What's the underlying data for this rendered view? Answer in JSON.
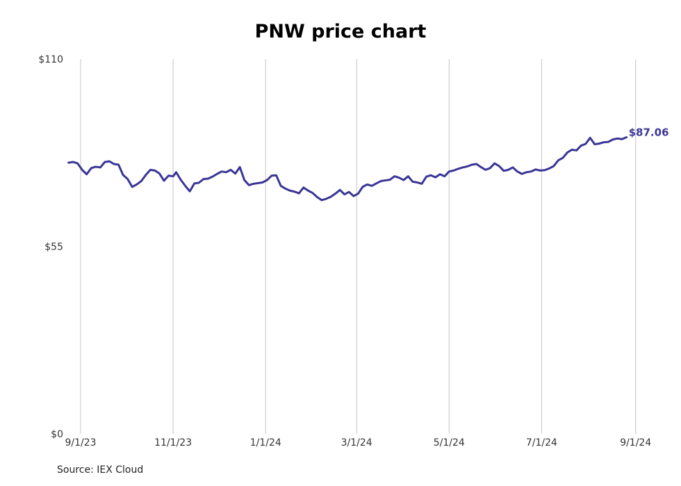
{
  "title": "PNW price chart",
  "source": "Source: IEX Cloud",
  "chart_data": {
    "type": "line",
    "title": "PNW price chart",
    "xlabel": "",
    "ylabel": "",
    "ylim": [
      0,
      110
    ],
    "xlim": [
      "2023-08-21",
      "2024-09-08"
    ],
    "y_ticks": [
      {
        "value": 0,
        "label": "$0"
      },
      {
        "value": 55,
        "label": "$55"
      },
      {
        "value": 110,
        "label": "$110"
      }
    ],
    "x_ticks": [
      {
        "date": "2023-09-01",
        "label": "9/1/23"
      },
      {
        "date": "2023-11-01",
        "label": "11/1/23"
      },
      {
        "date": "2024-01-01",
        "label": "1/1/24"
      },
      {
        "date": "2024-03-01",
        "label": "3/1/24"
      },
      {
        "date": "2024-05-01",
        "label": "5/1/24"
      },
      {
        "date": "2024-07-01",
        "label": "7/1/24"
      },
      {
        "date": "2024-09-01",
        "label": "9/1/24"
      }
    ],
    "grid": "vertical",
    "line_color": "#3a3596",
    "last_value_label": "$87.06",
    "series": [
      {
        "points": [
          [
            "2023-08-24",
            79.6
          ],
          [
            "2023-08-27",
            79.8
          ],
          [
            "2023-08-30",
            79.4
          ],
          [
            "2023-09-02",
            77.5
          ],
          [
            "2023-09-05",
            76.2
          ],
          [
            "2023-09-08",
            78.0
          ],
          [
            "2023-09-11",
            78.4
          ],
          [
            "2023-09-14",
            78.2
          ],
          [
            "2023-09-17",
            79.8
          ],
          [
            "2023-09-20",
            80.0
          ],
          [
            "2023-09-23",
            79.2
          ],
          [
            "2023-09-26",
            79.0
          ],
          [
            "2023-09-29",
            76.0
          ],
          [
            "2023-10-02",
            74.8
          ],
          [
            "2023-10-05",
            72.5
          ],
          [
            "2023-10-08",
            73.2
          ],
          [
            "2023-10-11",
            74.2
          ],
          [
            "2023-10-14",
            76.0
          ],
          [
            "2023-10-17",
            77.5
          ],
          [
            "2023-10-20",
            77.3
          ],
          [
            "2023-10-23",
            76.4
          ],
          [
            "2023-10-26",
            74.3
          ],
          [
            "2023-10-29",
            75.8
          ],
          [
            "2023-11-01",
            75.6
          ],
          [
            "2023-11-03",
            76.8
          ],
          [
            "2023-11-06",
            74.6
          ],
          [
            "2023-11-09",
            72.8
          ],
          [
            "2023-11-12",
            71.2
          ],
          [
            "2023-11-15",
            73.5
          ],
          [
            "2023-11-18",
            73.7
          ],
          [
            "2023-11-21",
            74.8
          ],
          [
            "2023-11-24",
            74.9
          ],
          [
            "2023-11-27",
            75.5
          ],
          [
            "2023-11-30",
            76.3
          ],
          [
            "2023-12-03",
            77.0
          ],
          [
            "2023-12-06",
            76.8
          ],
          [
            "2023-12-09",
            77.5
          ],
          [
            "2023-12-12",
            76.4
          ],
          [
            "2023-12-15",
            78.3
          ],
          [
            "2023-12-18",
            74.5
          ],
          [
            "2023-12-21",
            73.0
          ],
          [
            "2023-12-24",
            73.4
          ],
          [
            "2023-12-27",
            73.6
          ],
          [
            "2023-12-30",
            73.8
          ],
          [
            "2024-01-02",
            74.5
          ],
          [
            "2024-01-05",
            75.8
          ],
          [
            "2024-01-08",
            75.9
          ],
          [
            "2024-01-11",
            72.8
          ],
          [
            "2024-01-14",
            72.0
          ],
          [
            "2024-01-17",
            71.4
          ],
          [
            "2024-01-20",
            71.1
          ],
          [
            "2024-01-23",
            70.6
          ],
          [
            "2024-01-26",
            72.3
          ],
          [
            "2024-01-29",
            71.4
          ],
          [
            "2024-02-01",
            70.7
          ],
          [
            "2024-02-04",
            69.5
          ],
          [
            "2024-02-07",
            68.6
          ],
          [
            "2024-02-10",
            69.0
          ],
          [
            "2024-02-13",
            69.6
          ],
          [
            "2024-02-16",
            70.5
          ],
          [
            "2024-02-19",
            71.6
          ],
          [
            "2024-02-22",
            70.3
          ],
          [
            "2024-02-25",
            71.0
          ],
          [
            "2024-02-28",
            69.8
          ],
          [
            "2024-03-02",
            70.5
          ],
          [
            "2024-03-05",
            72.5
          ],
          [
            "2024-03-08",
            73.2
          ],
          [
            "2024-03-11",
            72.8
          ],
          [
            "2024-03-14",
            73.5
          ],
          [
            "2024-03-17",
            74.2
          ],
          [
            "2024-03-20",
            74.4
          ],
          [
            "2024-03-23",
            74.6
          ],
          [
            "2024-03-26",
            75.6
          ],
          [
            "2024-03-29",
            75.2
          ],
          [
            "2024-04-01",
            74.5
          ],
          [
            "2024-04-04",
            75.6
          ],
          [
            "2024-04-07",
            74.0
          ],
          [
            "2024-04-10",
            73.8
          ],
          [
            "2024-04-13",
            73.4
          ],
          [
            "2024-04-16",
            75.5
          ],
          [
            "2024-04-19",
            75.9
          ],
          [
            "2024-04-22",
            75.3
          ],
          [
            "2024-04-25",
            76.2
          ],
          [
            "2024-04-28",
            75.6
          ],
          [
            "2024-05-01",
            77.0
          ],
          [
            "2024-05-04",
            77.3
          ],
          [
            "2024-05-07",
            77.8
          ],
          [
            "2024-05-10",
            78.2
          ],
          [
            "2024-05-13",
            78.5
          ],
          [
            "2024-05-16",
            79.0
          ],
          [
            "2024-05-19",
            79.2
          ],
          [
            "2024-05-22",
            78.3
          ],
          [
            "2024-05-25",
            77.5
          ],
          [
            "2024-05-28",
            78.0
          ],
          [
            "2024-05-31",
            79.4
          ],
          [
            "2024-06-03",
            78.6
          ],
          [
            "2024-06-06",
            77.2
          ],
          [
            "2024-06-09",
            77.5
          ],
          [
            "2024-06-12",
            78.2
          ],
          [
            "2024-06-15",
            77.0
          ],
          [
            "2024-06-18",
            76.3
          ],
          [
            "2024-06-21",
            76.8
          ],
          [
            "2024-06-24",
            77.0
          ],
          [
            "2024-06-27",
            77.6
          ],
          [
            "2024-06-30",
            77.3
          ],
          [
            "2024-07-03",
            77.4
          ],
          [
            "2024-07-06",
            77.9
          ],
          [
            "2024-07-09",
            78.6
          ],
          [
            "2024-07-12",
            80.3
          ],
          [
            "2024-07-15",
            81.0
          ],
          [
            "2024-07-18",
            82.6
          ],
          [
            "2024-07-21",
            83.4
          ],
          [
            "2024-07-24",
            83.2
          ],
          [
            "2024-07-27",
            84.6
          ],
          [
            "2024-07-30",
            85.1
          ],
          [
            "2024-08-02",
            86.9
          ],
          [
            "2024-08-05",
            85.0
          ],
          [
            "2024-08-08",
            85.2
          ],
          [
            "2024-08-11",
            85.6
          ],
          [
            "2024-08-14",
            85.7
          ],
          [
            "2024-08-17",
            86.4
          ],
          [
            "2024-08-20",
            86.7
          ],
          [
            "2024-08-23",
            86.5
          ],
          [
            "2024-08-26",
            87.06
          ]
        ]
      }
    ]
  }
}
